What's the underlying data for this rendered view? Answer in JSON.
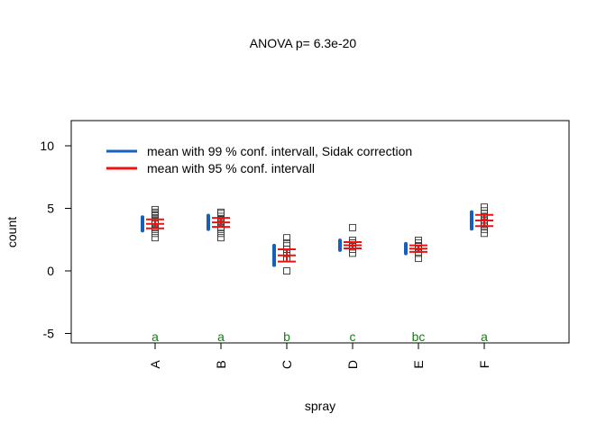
{
  "chart_data": {
    "type": "scatter",
    "title": "ANOVA p= 6.3e-20",
    "xlabel": "spray",
    "ylabel": "count",
    "ylim": [
      -5.8,
      12
    ],
    "yticks": [
      -5,
      0,
      5,
      10
    ],
    "categories": [
      "A",
      "B",
      "C",
      "D",
      "E",
      "F"
    ],
    "group_letters": [
      "a",
      "a",
      "b",
      "c",
      "bc",
      "a"
    ],
    "points": [
      [
        2.65,
        3.0,
        3.32,
        3.46,
        3.74,
        3.87,
        4.0,
        4.24,
        4.47,
        4.58,
        4.69,
        4.9
      ],
      [
        2.65,
        3.0,
        3.32,
        3.46,
        3.74,
        3.87,
        4.0,
        4.12,
        4.36,
        4.58,
        4.69
      ],
      [
        0.0,
        1.0,
        1.0,
        1.41,
        1.41,
        1.73,
        1.73,
        2.0,
        2.24,
        2.65
      ],
      [
        1.41,
        1.73,
        2.0,
        2.0,
        2.24,
        2.24,
        2.45,
        3.46
      ],
      [
        1.0,
        1.41,
        1.73,
        1.73,
        2.0,
        2.0,
        2.24,
        2.45
      ],
      [
        3.0,
        3.32,
        3.61,
        3.74,
        3.87,
        4.0,
        4.24,
        4.36,
        4.58,
        4.8,
        5.1
      ]
    ],
    "series": [
      {
        "name": "mean with 99 % conf. intervall, Sidak correction",
        "color": "#1560bd",
        "mean": [
          3.76,
          3.88,
          1.24,
          2.05,
          1.78,
          4.03
        ],
        "lower": [
          3.22,
          3.34,
          0.46,
          1.66,
          1.39,
          3.36
        ],
        "upper": [
          4.3,
          4.42,
          2.02,
          2.44,
          2.17,
          4.7
        ]
      },
      {
        "name": "mean with 95 % conf. intervall",
        "color": "#ee1111",
        "mean": [
          3.76,
          3.88,
          1.24,
          2.05,
          1.78,
          4.03
        ],
        "lower": [
          3.4,
          3.52,
          0.75,
          1.8,
          1.52,
          3.58
        ],
        "upper": [
          4.12,
          4.24,
          1.73,
          2.3,
          2.04,
          4.48
        ]
      }
    ],
    "legend_position": "top-left",
    "letter_color": "#1a7a1a",
    "grid": false
  }
}
